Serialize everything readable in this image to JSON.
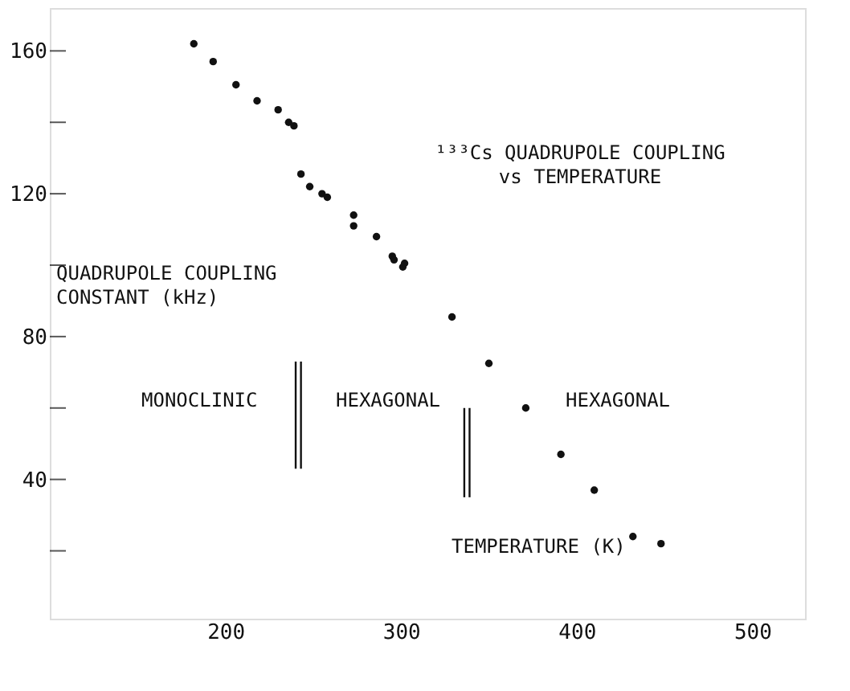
{
  "chart_data": {
    "type": "scatter",
    "title": "¹³³Cs QUADRUPOLE COUPLING\nvs TEMPERATURE",
    "xlabel": "TEMPERATURE (K)",
    "ylabel": "QUADRUPOLE COUPLING\nCONSTANT (kHz)",
    "annotations": [
      "MONOCLINIC",
      "HEXAGONAL",
      "HEXAGONAL"
    ],
    "xlim": [
      100,
      530
    ],
    "xticks": [
      200,
      300,
      400,
      500
    ],
    "ylim": [
      1,
      172
    ],
    "yticks": [
      {
        "value": 20,
        "label": null
      },
      40,
      {
        "value": 60,
        "label": null
      },
      80,
      {
        "value": 100,
        "label": null
      },
      120,
      {
        "value": 140,
        "label": null
      },
      160
    ],
    "grid": false,
    "series": [
      {
        "color": "#111111",
        "marker": "circle",
        "x": [
          182,
          193,
          206,
          218,
          230,
          236,
          239,
          243,
          248,
          255,
          258,
          273,
          273,
          286,
          295,
          296,
          301,
          302,
          329,
          350,
          371,
          391,
          410,
          432,
          448
        ],
        "values": [
          162,
          157,
          150.5,
          146,
          143.5,
          140,
          139,
          125.5,
          122,
          120,
          119,
          114,
          111,
          108,
          102.5,
          101.5,
          99.5,
          100.5,
          85.5,
          72.5,
          60,
          47,
          37,
          24,
          22
        ]
      },
      {
        "type": "line",
        "color": "#111111",
        "x": [
          240,
          240
        ],
        "values": [
          43,
          73
        ]
      },
      {
        "type": "line",
        "color": "#111111",
        "x": [
          243,
          243
        ],
        "values": [
          43,
          73
        ]
      },
      {
        "type": "line",
        "color": "#111111",
        "x": [
          336,
          336
        ],
        "values": [
          35,
          60
        ]
      },
      {
        "type": "line",
        "color": "#111111",
        "x": [
          339,
          339
        ],
        "values": [
          35,
          60
        ]
      }
    ]
  }
}
